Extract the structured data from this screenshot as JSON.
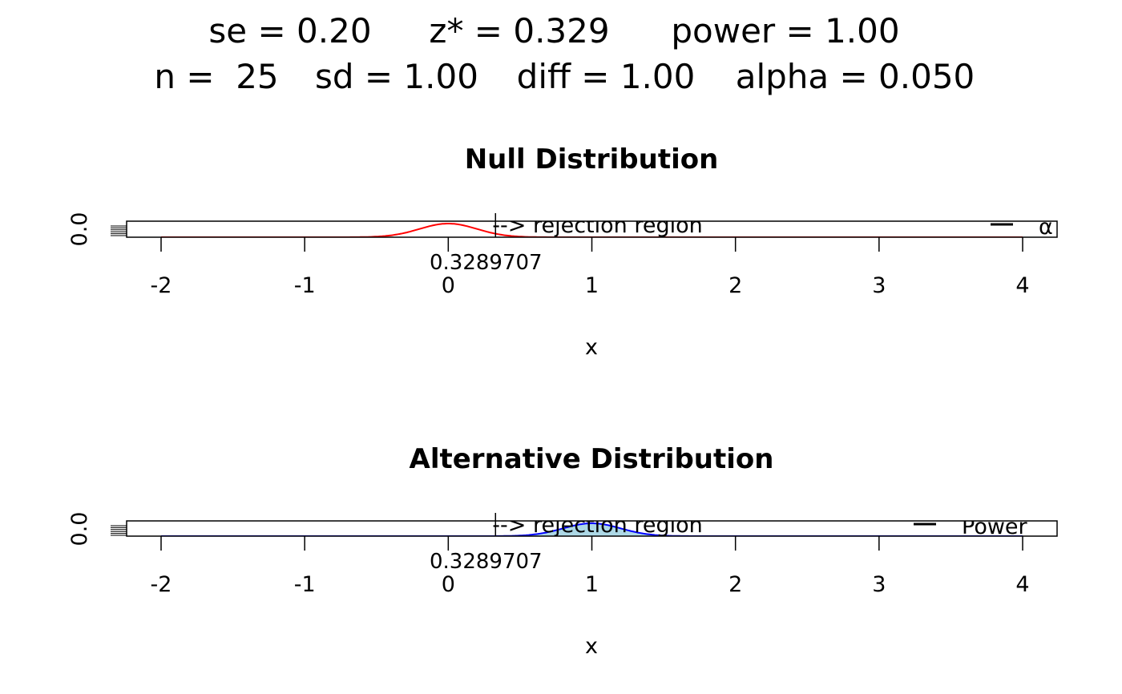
{
  "chart_data": [
    {
      "type": "line",
      "title": "Null Distribution",
      "xlabel": "x",
      "ylabel": "0.0",
      "xlim": [
        -2.25,
        4.25
      ],
      "xticks": [
        "-2",
        "-1",
        "0",
        "1",
        "2",
        "3",
        "4"
      ],
      "series": [
        {
          "name": "Null density",
          "distribution": "normal",
          "mean": 0,
          "sd": 0.2,
          "color": "#ff0000"
        }
      ],
      "critical_value": 0.3289707,
      "critical_label": "0.3289707",
      "annotation": "--> rejection region",
      "legend": {
        "entries": [
          "α"
        ],
        "placement": "top-right"
      }
    },
    {
      "type": "area",
      "title": "Alternative Distribution",
      "xlabel": "x",
      "ylabel": "0.0",
      "xlim": [
        -2.25,
        4.25
      ],
      "xticks": [
        "-2",
        "-1",
        "0",
        "1",
        "2",
        "3",
        "4"
      ],
      "series": [
        {
          "name": "Alternative density",
          "distribution": "normal",
          "mean": 1,
          "sd": 0.2,
          "color": "#0000ff",
          "fill": "#add8e6"
        }
      ],
      "critical_value": 0.3289707,
      "critical_label": "0.3289707",
      "annotation": "--> rejection region",
      "legend": {
        "entries": [
          "Power"
        ],
        "placement": "top-right"
      }
    }
  ],
  "header": {
    "line1": [
      "se = 0.20",
      "z* = 0.329",
      "power = 1.00"
    ],
    "line2": [
      "n =  25",
      "sd = 1.00",
      "diff = 1.00",
      "alpha = 0.050"
    ]
  }
}
